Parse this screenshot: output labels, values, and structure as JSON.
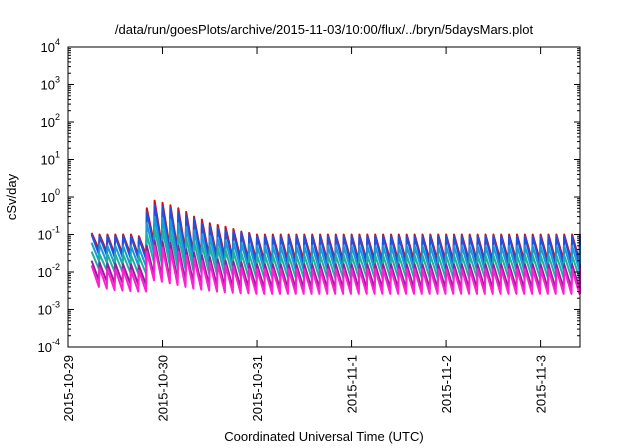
{
  "chart_data": {
    "type": "line",
    "title": "/data/run/goesPlots/archive/2015-11-03/10:00/flux/../bryn/5daysMars.plot",
    "xlabel": "Coordinated Universal Time (UTC)",
    "ylabel": "cSv/day",
    "yscale": "log",
    "ylim": [
      0.0001,
      10000
    ],
    "xlim": [
      "2015-10-29T00:00",
      "2015-11-03T10:00"
    ],
    "y_ticks": [
      {
        "value": 0.0001,
        "base": "10",
        "exp": "-4"
      },
      {
        "value": 0.001,
        "base": "10",
        "exp": "-3"
      },
      {
        "value": 0.01,
        "base": "10",
        "exp": "-2"
      },
      {
        "value": 0.1,
        "base": "10",
        "exp": "-1"
      },
      {
        "value": 1,
        "base": "10",
        "exp": "0"
      },
      {
        "value": 10,
        "base": "10",
        "exp": "1"
      },
      {
        "value": 100,
        "base": "10",
        "exp": "2"
      },
      {
        "value": 1000,
        "base": "10",
        "exp": "3"
      },
      {
        "value": 10000,
        "base": "10",
        "exp": "4"
      }
    ],
    "x_ticks": [
      {
        "value": "2015-10-29T00:00",
        "label": "2015-10-29"
      },
      {
        "value": "2015-10-30T00:00",
        "label": "2015-10-30"
      },
      {
        "value": "2015-10-31T00:00",
        "label": "2015-10-31"
      },
      {
        "value": "2015-11-01T00:00",
        "label": "2015-11-1"
      },
      {
        "value": "2015-11-02T00:00",
        "label": "2015-11-2"
      },
      {
        "value": "2015-11-03T00:00",
        "label": "2015-11-3"
      }
    ],
    "grid": false,
    "legend": "none",
    "series": [
      {
        "color": "#d01010",
        "peaks": [
          0.11,
          0.1,
          0.1,
          0.1,
          0.1,
          0.1,
          0.09,
          0.5,
          0.8,
          0.7,
          0.6,
          0.5,
          0.4,
          0.3,
          0.25,
          0.2,
          0.18,
          0.16,
          0.14,
          0.12,
          0.11,
          0.1,
          0.1,
          0.1,
          0.1,
          0.1,
          0.1,
          0.1,
          0.1,
          0.1,
          0.1,
          0.1,
          0.1,
          0.1,
          0.1,
          0.1,
          0.1,
          0.1,
          0.1,
          0.1,
          0.1,
          0.1,
          0.1,
          0.1,
          0.1,
          0.1,
          0.1,
          0.1,
          0.1,
          0.1,
          0.1,
          0.1,
          0.1,
          0.1,
          0.1,
          0.1,
          0.1,
          0.1,
          0.1,
          0.1,
          0.1,
          0.1,
          0.1,
          0.1,
          0.1
        ],
        "troughs": [
          0.04,
          0.035,
          0.03,
          0.03,
          0.03,
          0.028,
          0.028,
          0.06,
          0.05,
          0.045,
          0.04,
          0.035,
          0.03,
          0.028,
          0.026,
          0.025,
          0.024,
          0.023,
          0.022,
          0.021,
          0.02,
          0.02,
          0.02,
          0.02,
          0.02,
          0.02,
          0.02,
          0.02,
          0.02,
          0.02,
          0.02,
          0.02,
          0.02,
          0.02,
          0.02,
          0.02,
          0.02,
          0.02,
          0.02,
          0.02,
          0.02,
          0.02,
          0.02,
          0.02,
          0.02,
          0.02,
          0.02,
          0.02,
          0.02,
          0.02,
          0.02,
          0.02,
          0.02,
          0.02,
          0.02,
          0.02,
          0.02,
          0.02,
          0.02,
          0.02,
          0.02,
          0.02,
          0.02,
          0.02,
          0.02
        ]
      },
      {
        "color": "#2050e0",
        "peaks": [
          0.1,
          0.09,
          0.09,
          0.09,
          0.09,
          0.09,
          0.08,
          0.4,
          0.6,
          0.55,
          0.5,
          0.4,
          0.32,
          0.26,
          0.2,
          0.17,
          0.15,
          0.13,
          0.12,
          0.11,
          0.1,
          0.09,
          0.09,
          0.09,
          0.09,
          0.09,
          0.09,
          0.09,
          0.09,
          0.09,
          0.09,
          0.09,
          0.09,
          0.09,
          0.09,
          0.09,
          0.09,
          0.09,
          0.09,
          0.09,
          0.09,
          0.09,
          0.09,
          0.09,
          0.09,
          0.09,
          0.09,
          0.09,
          0.09,
          0.09,
          0.09,
          0.09,
          0.09,
          0.09,
          0.09,
          0.09,
          0.09,
          0.09,
          0.09,
          0.09,
          0.09,
          0.09,
          0.09,
          0.09,
          0.09
        ],
        "troughs": [
          0.03,
          0.028,
          0.025,
          0.025,
          0.024,
          0.023,
          0.022,
          0.05,
          0.045,
          0.04,
          0.035,
          0.03,
          0.026,
          0.024,
          0.022,
          0.021,
          0.02,
          0.019,
          0.018,
          0.017,
          0.016,
          0.016,
          0.016,
          0.016,
          0.016,
          0.016,
          0.016,
          0.016,
          0.016,
          0.016,
          0.016,
          0.016,
          0.016,
          0.016,
          0.016,
          0.016,
          0.016,
          0.016,
          0.016,
          0.016,
          0.016,
          0.016,
          0.016,
          0.016,
          0.016,
          0.016,
          0.016,
          0.016,
          0.016,
          0.016,
          0.016,
          0.016,
          0.016,
          0.016,
          0.016,
          0.016,
          0.016,
          0.016,
          0.016,
          0.016,
          0.016,
          0.016,
          0.016,
          0.016,
          0.016
        ]
      },
      {
        "color": "#1a9ad6",
        "peaks": [
          0.06,
          0.055,
          0.05,
          0.05,
          0.05,
          0.05,
          0.045,
          0.2,
          0.3,
          0.28,
          0.25,
          0.2,
          0.16,
          0.13,
          0.1,
          0.09,
          0.08,
          0.07,
          0.065,
          0.06,
          0.055,
          0.05,
          0.05,
          0.05,
          0.05,
          0.05,
          0.05,
          0.05,
          0.05,
          0.05,
          0.05,
          0.05,
          0.05,
          0.05,
          0.05,
          0.05,
          0.05,
          0.05,
          0.05,
          0.05,
          0.05,
          0.05,
          0.05,
          0.05,
          0.05,
          0.05,
          0.05,
          0.05,
          0.05,
          0.05,
          0.05,
          0.05,
          0.05,
          0.05,
          0.05,
          0.05,
          0.05,
          0.05,
          0.05,
          0.05,
          0.05,
          0.05,
          0.05,
          0.05,
          0.05
        ],
        "troughs": [
          0.02,
          0.018,
          0.016,
          0.016,
          0.015,
          0.015,
          0.014,
          0.03,
          0.028,
          0.025,
          0.022,
          0.02,
          0.018,
          0.016,
          0.015,
          0.014,
          0.013,
          0.013,
          0.012,
          0.012,
          0.011,
          0.011,
          0.011,
          0.011,
          0.011,
          0.011,
          0.011,
          0.011,
          0.011,
          0.011,
          0.011,
          0.011,
          0.011,
          0.011,
          0.011,
          0.011,
          0.011,
          0.011,
          0.011,
          0.011,
          0.011,
          0.011,
          0.011,
          0.011,
          0.011,
          0.011,
          0.011,
          0.011,
          0.011,
          0.011,
          0.011,
          0.011,
          0.011,
          0.011,
          0.011,
          0.011,
          0.011,
          0.011,
          0.011,
          0.011,
          0.011,
          0.011,
          0.011,
          0.011,
          0.011
        ]
      },
      {
        "color": "#20b0a0",
        "peaks": [
          0.035,
          0.03,
          0.03,
          0.03,
          0.03,
          0.028,
          0.026,
          0.1,
          0.15,
          0.14,
          0.12,
          0.1,
          0.08,
          0.065,
          0.055,
          0.05,
          0.045,
          0.04,
          0.036,
          0.033,
          0.03,
          0.028,
          0.028,
          0.028,
          0.028,
          0.028,
          0.028,
          0.028,
          0.028,
          0.028,
          0.028,
          0.028,
          0.028,
          0.028,
          0.028,
          0.028,
          0.028,
          0.028,
          0.028,
          0.028,
          0.028,
          0.028,
          0.028,
          0.028,
          0.028,
          0.028,
          0.028,
          0.028,
          0.028,
          0.028,
          0.028,
          0.028,
          0.028,
          0.028,
          0.028,
          0.028,
          0.028,
          0.028,
          0.028,
          0.028,
          0.028,
          0.028,
          0.028,
          0.028,
          0.028
        ],
        "troughs": [
          0.012,
          0.011,
          0.01,
          0.01,
          0.0095,
          0.009,
          0.009,
          0.018,
          0.016,
          0.015,
          0.013,
          0.012,
          0.011,
          0.01,
          0.009,
          0.0085,
          0.008,
          0.0078,
          0.0075,
          0.0072,
          0.007,
          0.007,
          0.007,
          0.007,
          0.007,
          0.007,
          0.007,
          0.007,
          0.007,
          0.007,
          0.007,
          0.007,
          0.007,
          0.007,
          0.007,
          0.007,
          0.007,
          0.007,
          0.007,
          0.007,
          0.007,
          0.007,
          0.007,
          0.007,
          0.007,
          0.007,
          0.007,
          0.007,
          0.007,
          0.007,
          0.007,
          0.007,
          0.007,
          0.007,
          0.007,
          0.007,
          0.007,
          0.007,
          0.007,
          0.007,
          0.007,
          0.007,
          0.007,
          0.007,
          0.007
        ]
      },
      {
        "color": "#9020a0",
        "peaks": [
          0.02,
          0.018,
          0.017,
          0.017,
          0.016,
          0.016,
          0.015,
          0.05,
          0.07,
          0.065,
          0.06,
          0.05,
          0.04,
          0.033,
          0.028,
          0.025,
          0.022,
          0.02,
          0.019,
          0.018,
          0.017,
          0.016,
          0.016,
          0.016,
          0.016,
          0.016,
          0.016,
          0.016,
          0.016,
          0.016,
          0.016,
          0.016,
          0.016,
          0.016,
          0.016,
          0.016,
          0.016,
          0.016,
          0.016,
          0.016,
          0.016,
          0.016,
          0.016,
          0.016,
          0.016,
          0.016,
          0.016,
          0.016,
          0.016,
          0.016,
          0.016,
          0.016,
          0.016,
          0.016,
          0.016,
          0.016,
          0.016,
          0.016,
          0.016,
          0.016,
          0.016,
          0.016,
          0.016,
          0.016,
          0.016
        ],
        "troughs": [
          0.006,
          0.0055,
          0.005,
          0.005,
          0.0048,
          0.0046,
          0.0045,
          0.008,
          0.007,
          0.0065,
          0.006,
          0.0055,
          0.005,
          0.0047,
          0.0044,
          0.0042,
          0.004,
          0.0039,
          0.0038,
          0.0037,
          0.0036,
          0.0036,
          0.0036,
          0.0036,
          0.0036,
          0.0036,
          0.0036,
          0.0036,
          0.0036,
          0.0036,
          0.0036,
          0.0036,
          0.0036,
          0.0036,
          0.0036,
          0.0036,
          0.0036,
          0.0036,
          0.0036,
          0.0036,
          0.0036,
          0.0036,
          0.0036,
          0.0036,
          0.0036,
          0.0036,
          0.0036,
          0.0036,
          0.0036,
          0.0036,
          0.0036,
          0.0036,
          0.0036,
          0.0036,
          0.0036,
          0.0036,
          0.0036,
          0.0036,
          0.0036,
          0.0036,
          0.0036,
          0.0036,
          0.0036,
          0.0036,
          0.0036
        ]
      },
      {
        "color": "#ff20d0",
        "peaks": [
          0.015,
          0.013,
          0.012,
          0.012,
          0.012,
          0.011,
          0.011,
          0.035,
          0.05,
          0.045,
          0.04,
          0.035,
          0.028,
          0.024,
          0.02,
          0.018,
          0.016,
          0.015,
          0.014,
          0.013,
          0.012,
          0.012,
          0.012,
          0.012,
          0.012,
          0.012,
          0.012,
          0.012,
          0.012,
          0.012,
          0.012,
          0.012,
          0.012,
          0.012,
          0.012,
          0.012,
          0.012,
          0.012,
          0.012,
          0.012,
          0.012,
          0.012,
          0.012,
          0.012,
          0.012,
          0.012,
          0.012,
          0.012,
          0.012,
          0.012,
          0.012,
          0.012,
          0.012,
          0.012,
          0.012,
          0.012,
          0.012,
          0.012,
          0.012,
          0.012,
          0.012,
          0.012,
          0.012,
          0.012,
          0.012
        ],
        "troughs": [
          0.004,
          0.0036,
          0.0033,
          0.0032,
          0.0031,
          0.003,
          0.003,
          0.006,
          0.0055,
          0.005,
          0.0045,
          0.004,
          0.0036,
          0.0034,
          0.0032,
          0.003,
          0.0029,
          0.0028,
          0.0027,
          0.0027,
          0.0026,
          0.0026,
          0.0026,
          0.0026,
          0.0026,
          0.0026,
          0.0026,
          0.0026,
          0.0026,
          0.0026,
          0.0026,
          0.0026,
          0.0026,
          0.0026,
          0.0026,
          0.0026,
          0.0026,
          0.0026,
          0.0026,
          0.0026,
          0.0026,
          0.0026,
          0.0026,
          0.0026,
          0.0026,
          0.0026,
          0.0026,
          0.0026,
          0.0026,
          0.0026,
          0.0026,
          0.0026,
          0.0026,
          0.0026,
          0.0026,
          0.0026,
          0.0026,
          0.0026,
          0.0026,
          0.0026,
          0.0026,
          0.0026,
          0.0026,
          0.0026,
          0.0026
        ]
      }
    ]
  }
}
